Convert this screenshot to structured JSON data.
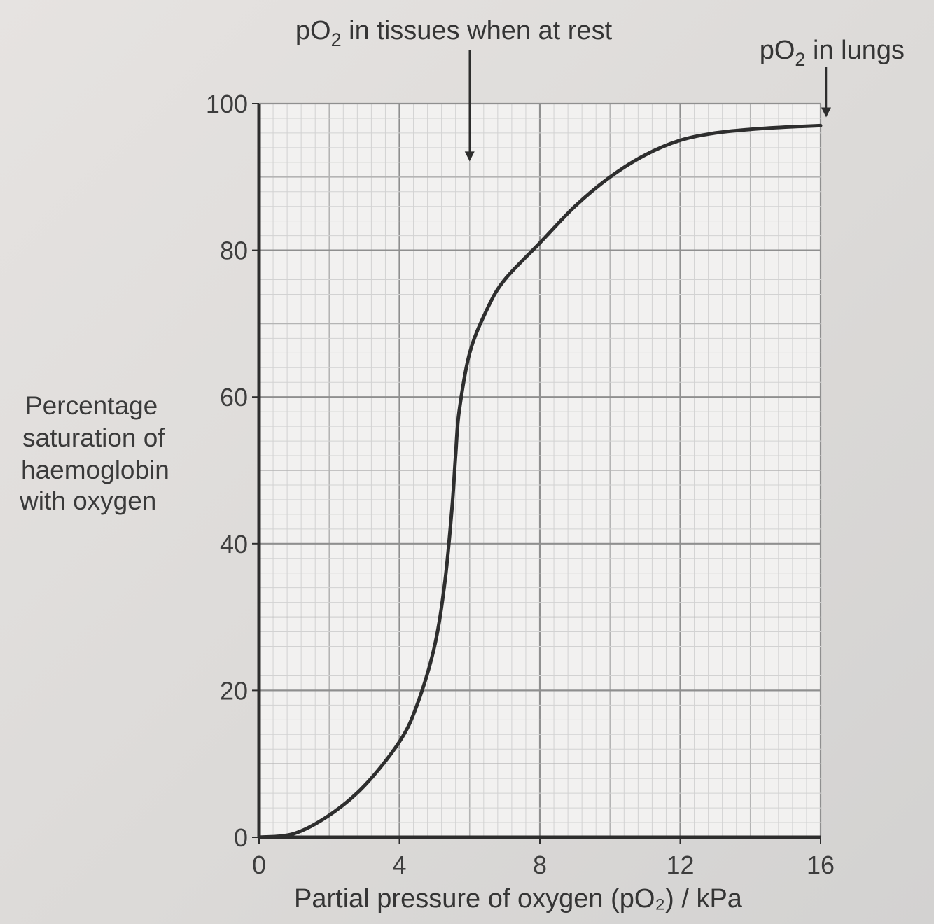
{
  "chart_data": {
    "type": "line",
    "xlabel": "Partial pressure of oxygen (pO₂) / kPa",
    "ylabel_lines": [
      "Percentage",
      "saturation of",
      "haemoglobin",
      "with oxygen"
    ],
    "xlim": [
      0,
      16
    ],
    "ylim": [
      0,
      100
    ],
    "x_ticks": [
      "0",
      "4",
      "8",
      "12",
      "16"
    ],
    "y_ticks": [
      "0",
      "20",
      "40",
      "60",
      "80",
      "100"
    ],
    "grid": true,
    "series": [
      {
        "x": [
          0,
          1,
          2,
          3,
          4,
          4.5,
          5,
          5.3,
          5.5,
          5.6,
          5.7,
          6,
          6.5,
          7,
          8,
          9,
          10,
          11,
          12,
          13,
          14,
          15,
          16
        ],
        "y": [
          0,
          0.5,
          3,
          7,
          13,
          18,
          26,
          35,
          45,
          52,
          58,
          66,
          72,
          76,
          81,
          86,
          90,
          93,
          95,
          96,
          96.5,
          96.8,
          97
        ]
      }
    ],
    "annotations": [
      {
        "label_parts": [
          "pO",
          "2",
          " in tissues when at rest"
        ],
        "x": 6,
        "y_tip": 91
      },
      {
        "label_parts": [
          "pO",
          "2",
          " in lungs"
        ],
        "x": 16,
        "y_tip": 97
      }
    ]
  }
}
